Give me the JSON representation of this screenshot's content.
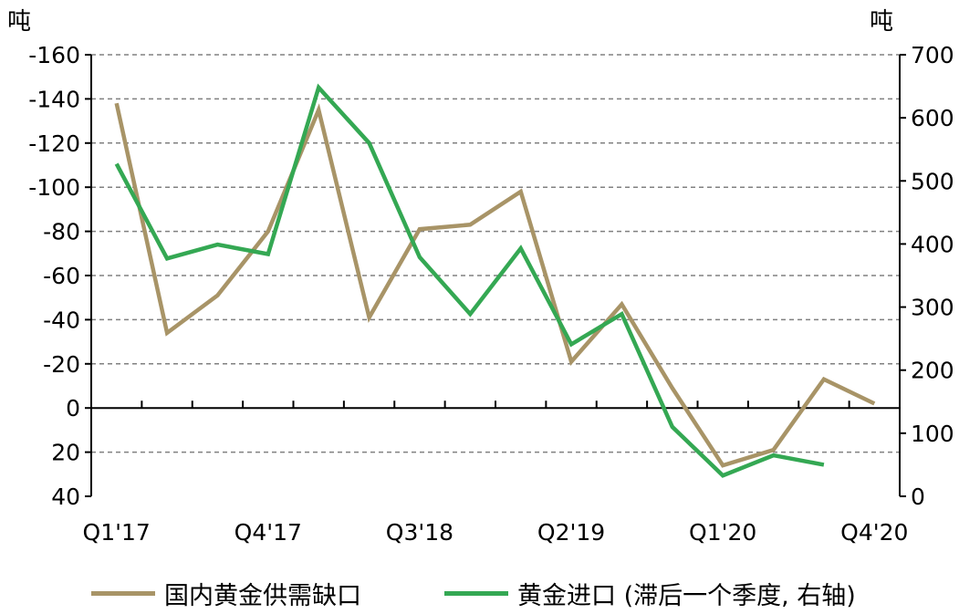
{
  "colors": {
    "deficit": "#A89467",
    "imports": "#34A853",
    "grid": "#808080",
    "axis": "#000000"
  },
  "chart_data": {
    "type": "line",
    "left_unit": "吨",
    "right_unit": "吨",
    "x": [
      "Q1'17",
      "Q2'17",
      "Q3'17",
      "Q4'17",
      "Q1'18",
      "Q2'18",
      "Q3'18",
      "Q4'18",
      "Q1'19",
      "Q2'19",
      "Q3'19",
      "Q4'19",
      "Q1'20",
      "Q2'20",
      "Q3'20",
      "Q4'20"
    ],
    "x_tick_labels": [
      "Q1'17",
      "Q4'17",
      "Q3'18",
      "Q2'19",
      "Q1'20",
      "Q4'20"
    ],
    "left_axis": {
      "range_top": -160,
      "range_bottom": 40,
      "ticks": [
        -160,
        -140,
        -120,
        -100,
        -80,
        -60,
        -40,
        -20,
        0,
        20,
        40
      ],
      "tick_labels": [
        "-160",
        "-140",
        "-120",
        "-100",
        "-80",
        "-60",
        "-40",
        "-20",
        "0",
        "20",
        "40"
      ]
    },
    "right_axis": {
      "range_top": 700,
      "range_bottom": 0,
      "ticks": [
        700,
        600,
        500,
        400,
        300,
        200,
        100,
        0
      ],
      "tick_labels": [
        "700",
        "600",
        "500",
        "400",
        "300",
        "200",
        "100",
        "0"
      ]
    },
    "series": [
      {
        "name": "国内黄金供需缺口",
        "axis": "left",
        "values": [
          -138,
          -34,
          -51,
          -80,
          -135,
          -41,
          -81,
          -83,
          -98,
          -21,
          -47,
          -9,
          26,
          19,
          -13,
          -2
        ]
      },
      {
        "name": "黄金进口 (滞后一个季度, 右轴)",
        "axis": "right",
        "values": [
          527,
          377,
          399,
          384,
          648,
          560,
          379,
          289,
          393,
          241,
          289,
          110,
          33,
          65,
          50,
          null
        ]
      }
    ],
    "grid": true,
    "legend_position": "bottom"
  }
}
